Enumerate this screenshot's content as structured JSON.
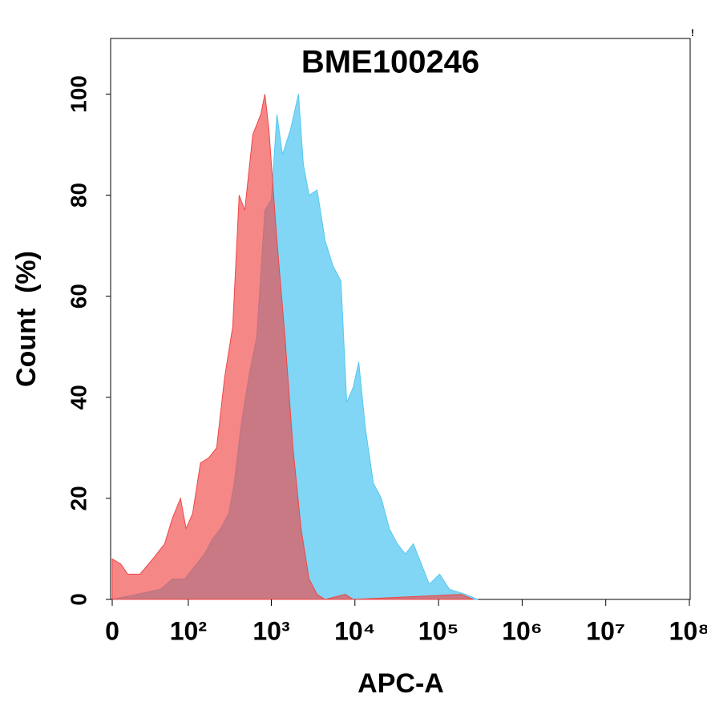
{
  "chart_data": {
    "type": "area",
    "title": "BME100246",
    "x_label": "APC-A",
    "y_label": "Count  (%)",
    "annotation": "!",
    "xscale": "biexponential",
    "xlim": [
      0,
      100000000
    ],
    "xticks": [
      0,
      {
        "value": 100,
        "label": "10²"
      },
      {
        "value": 1000,
        "label": "10³"
      },
      {
        "value": 10000,
        "label": "10⁴"
      },
      {
        "value": 100000,
        "label": "10⁵"
      },
      {
        "value": 1000000,
        "label": "10⁶"
      },
      {
        "value": 10000000,
        "label": "10⁷"
      },
      {
        "value": 100000000,
        "label": "10⁸"
      }
    ],
    "ylim": [
      0,
      111
    ],
    "yticks": [
      0,
      20,
      40,
      60,
      80,
      100
    ],
    "series": [
      {
        "color": "#55c8f0",
        "x": [
          0,
          18,
          44,
          63,
          90,
          113,
          158,
          198,
          247,
          309,
          360,
          431,
          537,
          670,
          837,
          1000,
          1166,
          1360,
          1695,
          2113,
          2418,
          2830,
          3530,
          4400,
          5460,
          6800,
          7980,
          9550,
          11100,
          13300,
          16600,
          20700,
          25800,
          32100,
          40000,
          50000,
          62200,
          77500,
          103000,
          135000,
          210000,
          295000
        ],
        "values": [
          0,
          1,
          2,
          4,
          4,
          6,
          9,
          12,
          14,
          17,
          23,
          34,
          44,
          52,
          77,
          79,
          96,
          88,
          93,
          100,
          86,
          80,
          81,
          71,
          66,
          63,
          39,
          42,
          47,
          34,
          23,
          20,
          14,
          11,
          9,
          11,
          7,
          3,
          5,
          2,
          1,
          0
        ]
      },
      {
        "color": "#f04646",
        "x": [
          0,
          6,
          11,
          21,
          34,
          50,
          63,
          80,
          94,
          113,
          141,
          177,
          221,
          276,
          345,
          412,
          481,
          600,
          749,
          837,
          935,
          1166,
          1455,
          1815,
          2265,
          2830,
          3530,
          4400,
          7670,
          9550,
          187000,
          262000
        ],
        "values": [
          8,
          7,
          5,
          5,
          8,
          11,
          16,
          20,
          14,
          17,
          27,
          28,
          30,
          44,
          54,
          80,
          77,
          92,
          96,
          100,
          93,
          71,
          52,
          30,
          14,
          4,
          1,
          0,
          1,
          0,
          1,
          0
        ]
      }
    ]
  }
}
